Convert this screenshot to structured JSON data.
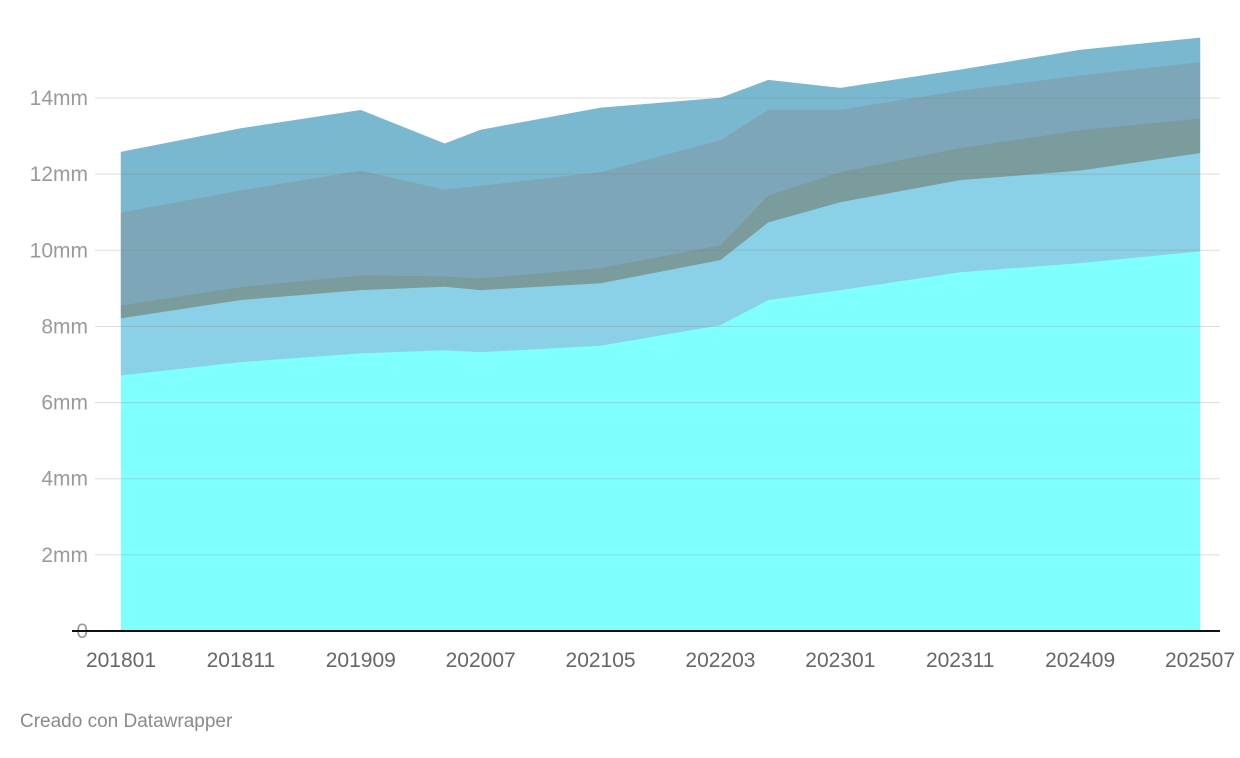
{
  "chart_data": {
    "type": "area",
    "stacked": true,
    "x": [
      0,
      10,
      20,
      27,
      30,
      40,
      50,
      54,
      60,
      70,
      80,
      90
    ],
    "x_start": "201801",
    "x_unit": "months since 201801",
    "x_ticks": [
      {
        "pos": 0,
        "label": "201801"
      },
      {
        "pos": 10,
        "label": "201811"
      },
      {
        "pos": 20,
        "label": "201909"
      },
      {
        "pos": 30,
        "label": "202007"
      },
      {
        "pos": 40,
        "label": "202105"
      },
      {
        "pos": 50,
        "label": "202203"
      },
      {
        "pos": 60,
        "label": "202301"
      },
      {
        "pos": 70,
        "label": "202311"
      },
      {
        "pos": 80,
        "label": "202409"
      },
      {
        "pos": 90,
        "label": "202507"
      }
    ],
    "y_ticks": [
      {
        "value": 0,
        "label": "0"
      },
      {
        "value": 2,
        "label": "2mm"
      },
      {
        "value": 4,
        "label": "4mm"
      },
      {
        "value": 6,
        "label": "6mm"
      },
      {
        "value": 8,
        "label": "8mm"
      },
      {
        "value": 10,
        "label": "10mm"
      },
      {
        "value": 12,
        "label": "12mm"
      },
      {
        "value": 14,
        "label": "14mm"
      }
    ],
    "ylim": [
      0,
      16.5
    ],
    "xlim": [
      0,
      90
    ],
    "grid": true,
    "series": [
      {
        "color": "#80ffff",
        "values": [
          6.72,
          7.07,
          7.3,
          7.38,
          7.33,
          7.5,
          8.04,
          8.7,
          8.96,
          9.43,
          9.67,
          9.98
        ]
      },
      {
        "color": "#8ad0e6",
        "values": [
          1.5,
          1.63,
          1.66,
          1.67,
          1.63,
          1.64,
          1.71,
          2.04,
          2.31,
          2.42,
          2.43,
          2.58
        ]
      },
      {
        "color": "#7a9c9d",
        "values": [
          0.34,
          0.34,
          0.39,
          0.27,
          0.31,
          0.4,
          0.39,
          0.71,
          0.79,
          0.84,
          1.06,
          0.91
        ]
      },
      {
        "color": "#7ea6b9",
        "values": [
          2.44,
          2.54,
          2.75,
          2.28,
          2.43,
          2.52,
          2.76,
          2.25,
          1.64,
          1.51,
          1.44,
          1.48
        ]
      },
      {
        "color": "#7ab8cf",
        "values": [
          1.58,
          1.62,
          1.58,
          1.2,
          1.46,
          1.68,
          1.1,
          0.77,
          0.56,
          0.54,
          0.66,
          0.63
        ]
      }
    ]
  },
  "footer": "Creado con Datawrapper"
}
